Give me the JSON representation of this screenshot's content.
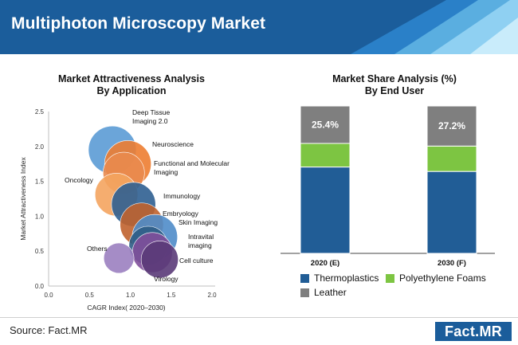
{
  "title": "Multiphoton Microscopy Market",
  "source": "Source: Fact.MR",
  "logo_text": "Fact.MR",
  "colors": {
    "header": "#1b5d9b",
    "thermoplastics": "#215d96",
    "polyethylene_foams": "#7dc542",
    "leather": "#7f7f7f"
  },
  "left_panel": {
    "title_line1": "Market Attractiveness Analysis",
    "title_line2": "By Application"
  },
  "right_panel": {
    "title_line1": "Market Share Analysis (%)",
    "title_line2": "By End User"
  },
  "chart_data": [
    {
      "type": "scatter",
      "xlabel": "CAGR Index( 2020–2030)",
      "ylabel": "Market Attractiveness Index",
      "xlim": [
        0.0,
        2.0
      ],
      "ylim": [
        0.0,
        2.5
      ],
      "x_ticks": [
        "0.0",
        "0.5",
        "1.0",
        "1.5",
        "2.0"
      ],
      "y_ticks": [
        "0.0",
        "0.5",
        "1.0",
        "1.5",
        "2.0",
        "2.5"
      ],
      "points": [
        {
          "label": "Deep Tissue Imaging 2.0",
          "x": 0.78,
          "y": 1.95,
          "size": 1.0,
          "color": "#5b9bd5"
        },
        {
          "label": "Neuroscience",
          "x": 0.97,
          "y": 1.75,
          "size": 0.95,
          "color": "#ed7d31"
        },
        {
          "label": "Functional and Molecular Imaging",
          "x": 0.92,
          "y": 1.62,
          "size": 0.75,
          "color": "#e98a4e"
        },
        {
          "label": "Oncology",
          "x": 0.83,
          "y": 1.31,
          "size": 0.8,
          "color": "#f4a45f"
        },
        {
          "label": "Immunology",
          "x": 1.04,
          "y": 1.17,
          "size": 0.85,
          "color": "#2f5f91"
        },
        {
          "label": "Embryology",
          "x": 1.14,
          "y": 0.88,
          "size": 0.82,
          "color": "#c0622d"
        },
        {
          "label": "Skin Imaging",
          "x": 1.3,
          "y": 0.7,
          "size": 0.9,
          "color": "#4f8cc9"
        },
        {
          "label": "Intravital imaging",
          "x": 1.22,
          "y": 0.58,
          "size": 0.65,
          "color": "#2d5d86"
        },
        {
          "label": "Cell culture",
          "x": 1.27,
          "y": 0.48,
          "size": 0.7,
          "color": "#7f4f9a"
        },
        {
          "label": "Virology",
          "x": 1.36,
          "y": 0.38,
          "size": 0.6,
          "color": "#5a3a78"
        },
        {
          "label": "Others",
          "x": 0.86,
          "y": 0.4,
          "size": 0.4,
          "color": "#9b7fc0"
        }
      ]
    },
    {
      "type": "bar",
      "stacked": true,
      "categories": [
        "2020 (E)",
        "2030 (F)"
      ],
      "series": [
        {
          "name": "Thermoplastics",
          "values": [
            58.6,
            55.6
          ],
          "color": "#215d96"
        },
        {
          "name": "Polyethylene Foams",
          "values": [
            16.0,
            17.2
          ],
          "color": "#7dc542"
        },
        {
          "name": "Leather",
          "values": [
            25.4,
            27.2
          ],
          "color": "#7f7f7f"
        }
      ],
      "data_labels": [
        "25.4%",
        "27.2%"
      ],
      "ylim": [
        0,
        100
      ]
    }
  ]
}
